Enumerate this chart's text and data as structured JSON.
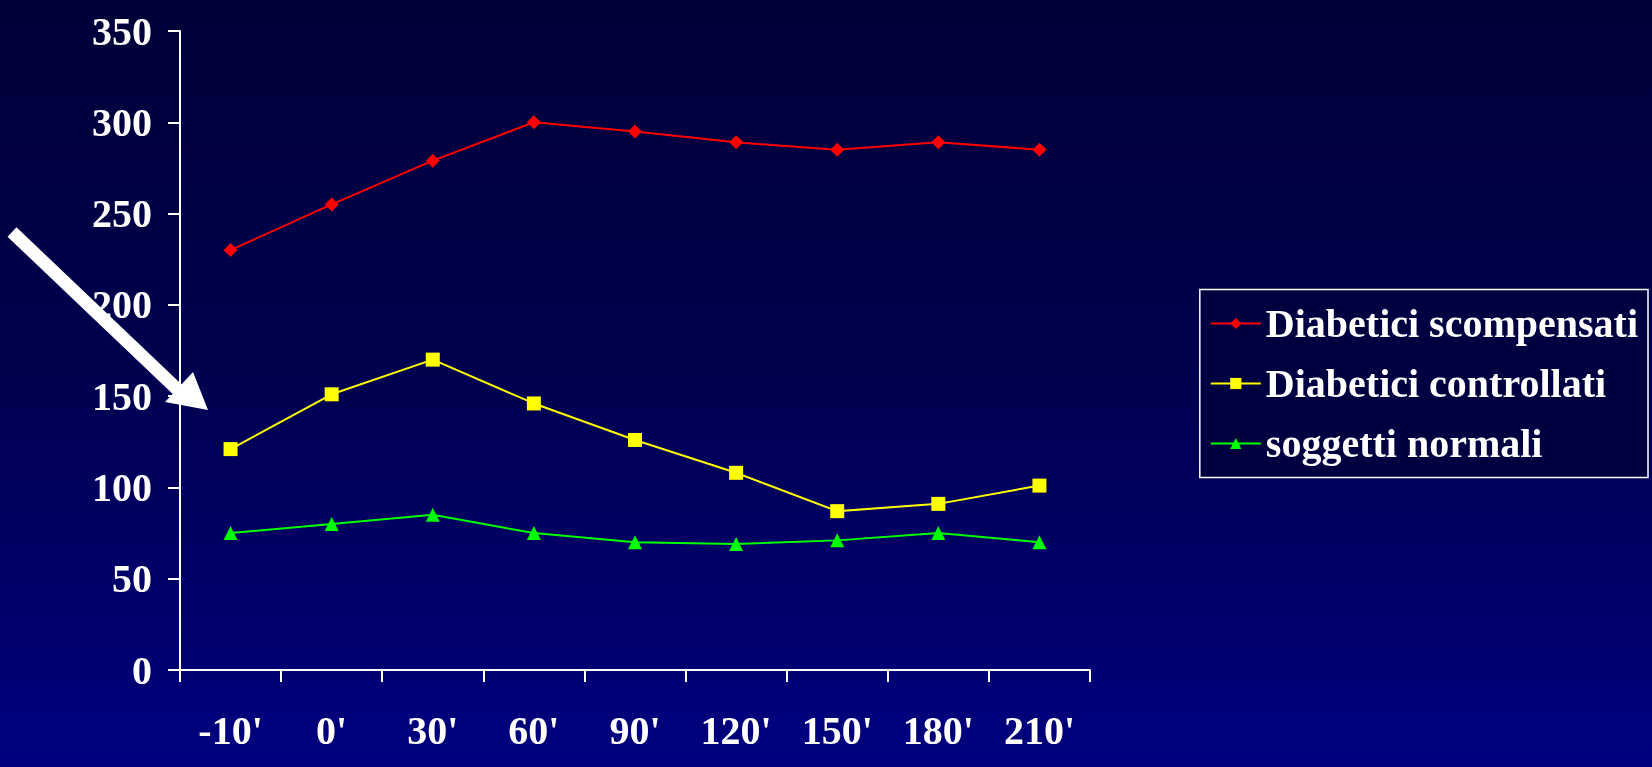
{
  "chart_data": {
    "type": "line",
    "categories": [
      "-10'",
      "0'",
      "30'",
      "60'",
      "90'",
      "120'",
      "150'",
      "180'",
      "210'"
    ],
    "series": [
      {
        "name": "Diabetici scompensati",
        "color": "#ff0000",
        "marker": "diamond",
        "values": [
          230,
          255,
          279,
          300,
          295,
          289,
          285,
          289,
          285
        ]
      },
      {
        "name": "Diabetici controllati",
        "color": "#ffff00",
        "marker": "square",
        "values": [
          121,
          151,
          170,
          146,
          126,
          108,
          87,
          91,
          101
        ]
      },
      {
        "name": "soggetti normali",
        "color": "#00ff00",
        "marker": "triangle",
        "values": [
          75,
          80,
          85,
          75,
          70,
          69,
          71,
          75,
          70
        ]
      }
    ],
    "ylim": [
      0,
      350
    ],
    "yticks": [
      0,
      50,
      100,
      150,
      200,
      250,
      300,
      350
    ],
    "grid": false,
    "legend": "right",
    "line_style": "solid"
  }
}
